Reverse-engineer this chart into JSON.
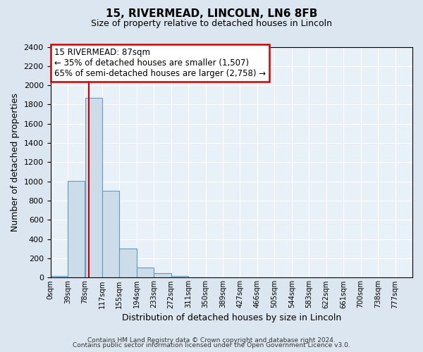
{
  "title": "15, RIVERMEAD, LINCOLN, LN6 8FB",
  "subtitle": "Size of property relative to detached houses in Lincoln",
  "xlabel": "Distribution of detached houses by size in Lincoln",
  "ylabel": "Number of detached properties",
  "bar_labels": [
    "0sqm",
    "39sqm",
    "78sqm",
    "117sqm",
    "155sqm",
    "194sqm",
    "233sqm",
    "272sqm",
    "311sqm",
    "350sqm",
    "389sqm",
    "427sqm",
    "466sqm",
    "505sqm",
    "544sqm",
    "583sqm",
    "622sqm",
    "661sqm",
    "700sqm",
    "738sqm",
    "777sqm"
  ],
  "bar_values": [
    20,
    1005,
    1870,
    900,
    300,
    105,
    50,
    20,
    5,
    0,
    0,
    0,
    0,
    0,
    0,
    0,
    0,
    0,
    0,
    0,
    0
  ],
  "bar_color": "#ccdce8",
  "bar_edge_color": "#6699bb",
  "vline_color": "#cc0000",
  "ylim": [
    0,
    2400
  ],
  "yticks": [
    0,
    200,
    400,
    600,
    800,
    1000,
    1200,
    1400,
    1600,
    1800,
    2000,
    2200,
    2400
  ],
  "annotation_title": "15 RIVERMEAD: 87sqm",
  "annotation_line1": "← 35% of detached houses are smaller (1,507)",
  "annotation_line2": "65% of semi-detached houses are larger (2,758) →",
  "annotation_box_color": "#ffffff",
  "annotation_box_edge": "#cc0000",
  "footer1": "Contains HM Land Registry data © Crown copyright and database right 2024.",
  "footer2": "Contains public sector information licensed under the Open Government Licence v3.0.",
  "bg_color": "#dce6f0",
  "plot_bg_color": "#e8f0f8",
  "grid_color": "#ffffff",
  "bin_width": 39,
  "property_sqm": 87,
  "n_bins": 21
}
